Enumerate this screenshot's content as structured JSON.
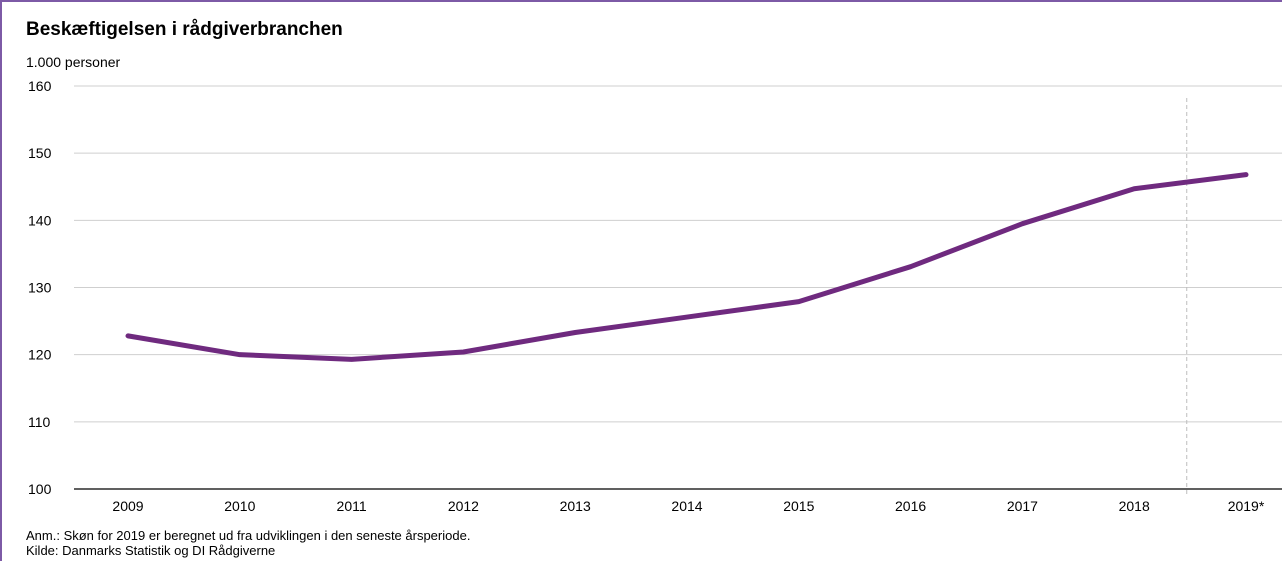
{
  "page": {
    "title": "Beskæftigelsen i rådgiverbranchen",
    "unit_label": "1.000 personer",
    "note": "Anm.: Skøn for 2019 er beregnet ud fra udviklingen  i den seneste årsperiode.",
    "source": "Kilde: Danmarks Statistik og DI Rådgiverne"
  },
  "chart_data": {
    "type": "line",
    "title": "Beskæftigelsen i rådgiverbranchen",
    "ylabel": "1.000 personer",
    "xlabel": "",
    "categories": [
      "2009",
      "2010",
      "2011",
      "2012",
      "2013",
      "2014",
      "2015",
      "2016",
      "2017",
      "2018",
      "2019*"
    ],
    "series": [
      {
        "name": "",
        "values": [
          122.8,
          120.0,
          119.3,
          120.4,
          123.3,
          125.6,
          127.9,
          133.1,
          139.5,
          144.7,
          146.8
        ],
        "color": "#6f2a7f"
      }
    ],
    "ylim": [
      100,
      160
    ],
    "yticks": [
      100,
      110,
      120,
      130,
      140,
      150,
      160
    ],
    "grid": true,
    "legend": "none",
    "estimate_divider": {
      "between": [
        "2018",
        "2019*"
      ],
      "color": "#bdbdbd"
    }
  }
}
